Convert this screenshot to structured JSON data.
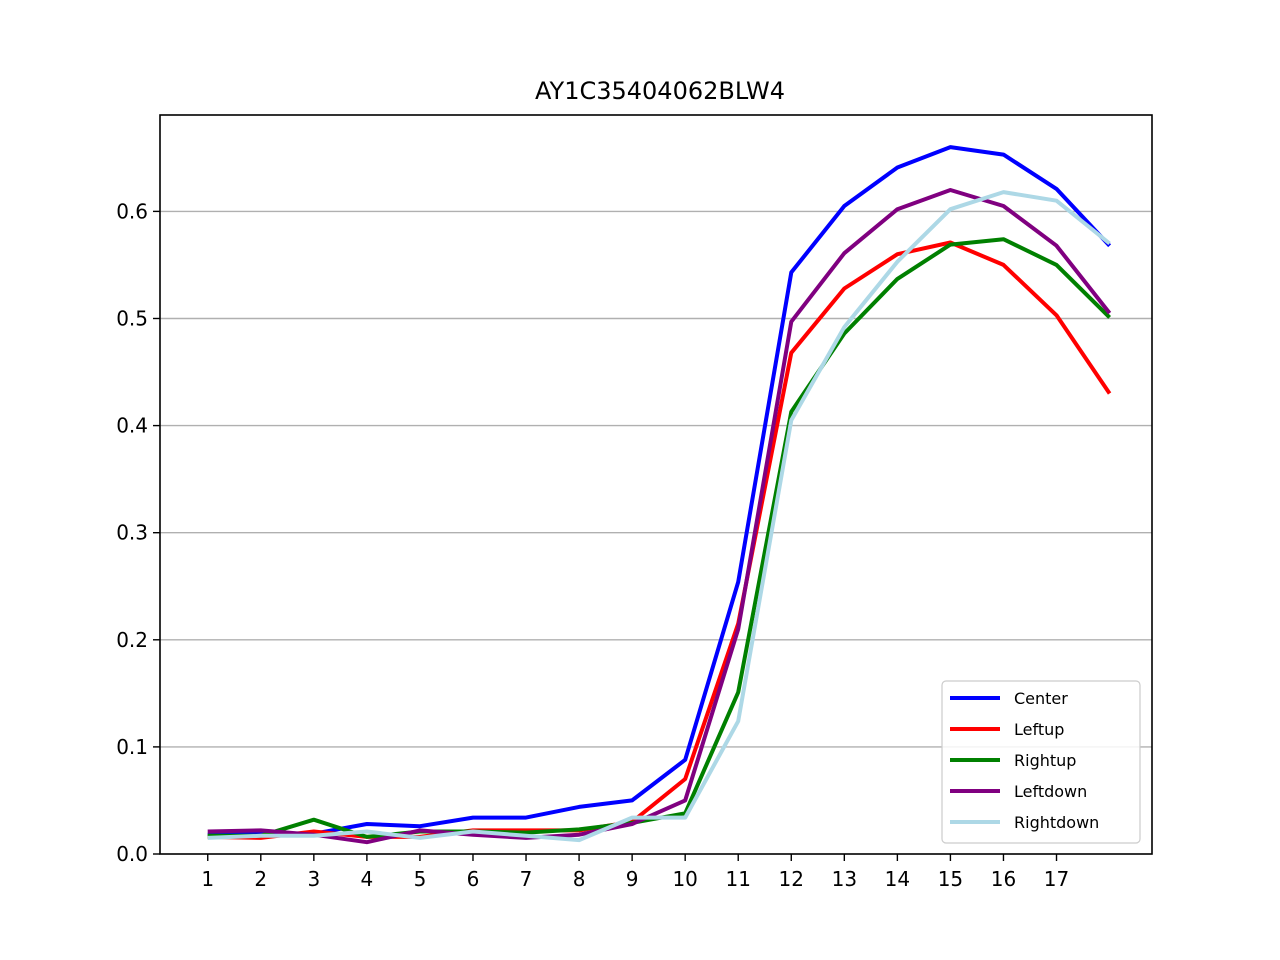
{
  "chart_data": {
    "type": "line",
    "title": "AY1C35404062BLW4",
    "xlabel": "",
    "ylabel": "",
    "x": [
      1,
      2,
      3,
      4,
      5,
      6,
      7,
      8,
      9,
      10,
      11,
      12,
      13,
      14,
      15,
      16,
      17,
      18
    ],
    "x_ticks": [
      "1",
      "2",
      "3",
      "4",
      "5",
      "6",
      "7",
      "8",
      "9",
      "10",
      "11",
      "12",
      "13",
      "14",
      "15",
      "16",
      "17"
    ],
    "xlim": [
      0.1,
      18.8
    ],
    "ylim": [
      0,
      0.69
    ],
    "y_ticks": [
      "0.0",
      "0.1",
      "0.2",
      "0.3",
      "0.4",
      "0.5",
      "0.6"
    ],
    "grid": "y",
    "legend_position": "lower-right",
    "series": [
      {
        "name": "Center",
        "color": "#0000ff",
        "values": [
          0.018,
          0.019,
          0.019,
          0.028,
          0.026,
          0.034,
          0.034,
          0.044,
          0.05,
          0.088,
          0.254,
          0.543,
          0.605,
          0.641,
          0.66,
          0.653,
          0.621,
          0.568
        ]
      },
      {
        "name": "Leftup",
        "color": "#ff0000",
        "values": [
          0.016,
          0.015,
          0.021,
          0.016,
          0.016,
          0.022,
          0.022,
          0.022,
          0.03,
          0.07,
          0.215,
          0.468,
          0.528,
          0.56,
          0.571,
          0.55,
          0.503,
          0.43
        ]
      },
      {
        "name": "Rightup",
        "color": "#008000",
        "values": [
          0.017,
          0.017,
          0.032,
          0.016,
          0.021,
          0.021,
          0.02,
          0.023,
          0.029,
          0.038,
          0.151,
          0.413,
          0.486,
          0.537,
          0.569,
          0.574,
          0.55,
          0.501
        ]
      },
      {
        "name": "Leftdown",
        "color": "#800080",
        "values": [
          0.021,
          0.022,
          0.018,
          0.011,
          0.022,
          0.018,
          0.015,
          0.018,
          0.028,
          0.05,
          0.21,
          0.497,
          0.561,
          0.602,
          0.62,
          0.605,
          0.568,
          0.505
        ]
      },
      {
        "name": "Rightdown",
        "color": "#add8e6",
        "values": [
          0.015,
          0.017,
          0.017,
          0.021,
          0.015,
          0.021,
          0.017,
          0.013,
          0.034,
          0.034,
          0.124,
          0.405,
          0.492,
          0.553,
          0.602,
          0.618,
          0.61,
          0.57
        ]
      }
    ]
  }
}
